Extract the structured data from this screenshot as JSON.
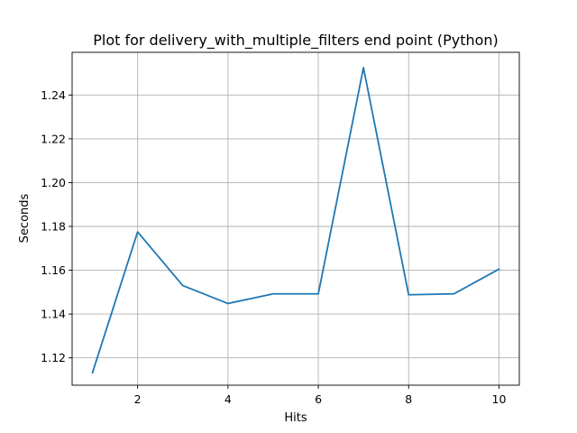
{
  "chart_data": {
    "type": "line",
    "title": "Plot for delivery_with_multiple_filters end point (Python)",
    "xlabel": "Hits",
    "ylabel": "Seconds",
    "x": [
      1,
      2,
      3,
      4,
      5,
      6,
      7,
      8,
      9,
      10
    ],
    "series": [
      {
        "values": [
          1.1132,
          1.1775,
          1.153,
          1.1448,
          1.1492,
          1.1492,
          1.2525,
          1.1488,
          1.1492,
          1.1605
        ],
        "color": "#1f77b4"
      }
    ],
    "xlim": [
      0.55,
      10.45
    ],
    "ylim": [
      1.1075,
      1.2595
    ],
    "xticks": [
      2,
      4,
      6,
      8,
      10
    ],
    "xtick_labels": [
      "2",
      "4",
      "6",
      "8",
      "10"
    ],
    "yticks": [
      1.12,
      1.14,
      1.16,
      1.18,
      1.2,
      1.22,
      1.24
    ],
    "ytick_labels": [
      "1.12",
      "1.14",
      "1.16",
      "1.18",
      "1.20",
      "1.22",
      "1.24"
    ],
    "grid": true,
    "legend": "none"
  }
}
